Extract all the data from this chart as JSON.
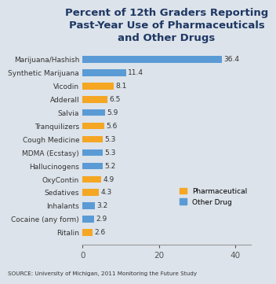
{
  "title": "Percent of 12th Graders Reporting\nPast-Year Use of Pharmaceuticals\nand Other Drugs",
  "categories": [
    "Ritalin",
    "Cocaine (any form)",
    "Inhalants",
    "Sedatives",
    "OxyContin",
    "Hallucinogens",
    "MDMA (Ecstasy)",
    "Cough Medicine",
    "Tranquilizers",
    "Salvia",
    "Adderall",
    "Vicodin",
    "Synthetic Marijuana",
    "Marijuana/Hashish"
  ],
  "values": [
    2.6,
    2.9,
    3.2,
    4.3,
    4.9,
    5.2,
    5.3,
    5.3,
    5.6,
    5.9,
    6.5,
    8.1,
    11.4,
    36.4
  ],
  "colors": [
    "#f5a623",
    "#5b9bd5",
    "#5b9bd5",
    "#f5a623",
    "#f5a623",
    "#5b9bd5",
    "#5b9bd5",
    "#f5a623",
    "#f5a623",
    "#5b9bd5",
    "#f5a623",
    "#f5a623",
    "#5b9bd5",
    "#5b9bd5"
  ],
  "xlim": [
    0,
    44
  ],
  "xticks": [
    0,
    20,
    40
  ],
  "source_text": "SOURCE: University of Michigan, 2011 Monitoring the Future Study",
  "legend_pharmaceutical": "Pharmaceutical",
  "legend_other": "Other Drug",
  "pharmaceutical_color": "#f5a623",
  "other_color": "#5b9bd5",
  "background_color": "#dce3ea",
  "plot_bg_color": "#dce3ea",
  "title_color": "#1f3864",
  "bar_height": 0.5,
  "title_fontsize": 9.5,
  "label_fontsize": 6.5,
  "tick_fontsize": 7.5,
  "value_fontsize": 6.5
}
